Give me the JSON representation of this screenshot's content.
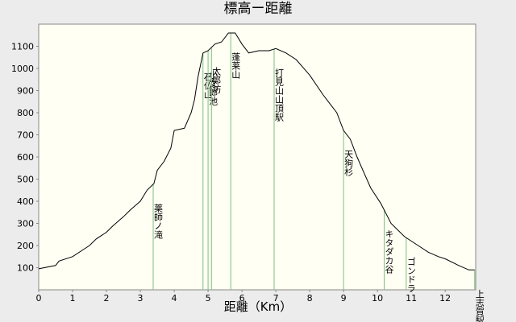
{
  "chart_data": {
    "type": "line",
    "title": "標高ー距離",
    "x_label": "距離（Km）",
    "xlim": [
      0,
      12.9
    ],
    "ylim": [
      0,
      1200
    ],
    "xticks": [
      0,
      1,
      2,
      3,
      4,
      5,
      6,
      7,
      8,
      9,
      10,
      11,
      12
    ],
    "yticks": [
      100,
      200,
      300,
      400,
      500,
      600,
      700,
      800,
      900,
      1000,
      1100
    ],
    "x": [
      0,
      0.5,
      0.6,
      1,
      1.3,
      1.5,
      1.7,
      2,
      2.2,
      2.5,
      2.7,
      3,
      3.2,
      3.4,
      3.5,
      3.7,
      3.9,
      4,
      4.3,
      4.5,
      4.6,
      4.7,
      4.85,
      5,
      5.2,
      5.4,
      5.6,
      5.8,
      6,
      6.2,
      6.5,
      6.8,
      7,
      7.3,
      7.6,
      8,
      8.4,
      8.8,
      9,
      9.2,
      9.4,
      9.6,
      9.8,
      10.1,
      10.4,
      10.8,
      11.2,
      11.5,
      11.8,
      12,
      12.4,
      12.7,
      12.87
    ],
    "series": [
      {
        "name": "標高",
        "color": "#000000",
        "values": [
          95,
          110,
          130,
          150,
          180,
          200,
          230,
          260,
          290,
          330,
          360,
          400,
          450,
          480,
          540,
          580,
          640,
          720,
          730,
          800,
          860,
          960,
          1070,
          1080,
          1110,
          1120,
          1160,
          1160,
          1110,
          1070,
          1080,
          1080,
          1090,
          1070,
          1040,
          970,
          880,
          800,
          720,
          680,
          600,
          530,
          460,
          390,
          300,
          240,
          200,
          170,
          150,
          140,
          110,
          90,
          90
        ]
      }
    ],
    "landmark_color": "#7fbf7f",
    "landmarks": [
      {
        "name": "薬師ノ滝",
        "x": 3.38
      },
      {
        "name": "石仏山",
        "x": 4.85
      },
      {
        "name": "小女郎池",
        "x": 5.0
      },
      {
        "name": "太郎坊",
        "x": 5.1
      },
      {
        "name": "蓬莱山",
        "x": 5.67
      },
      {
        "name": "打見山山頂駅",
        "x": 6.95
      },
      {
        "name": "天狗杉",
        "x": 9.0
      },
      {
        "name": "キタダカ谷",
        "x": 10.2
      },
      {
        "name": "ゴンドラ",
        "x": 10.85
      },
      {
        "name": "上志賀駅",
        "x": 12.87
      }
    ]
  }
}
